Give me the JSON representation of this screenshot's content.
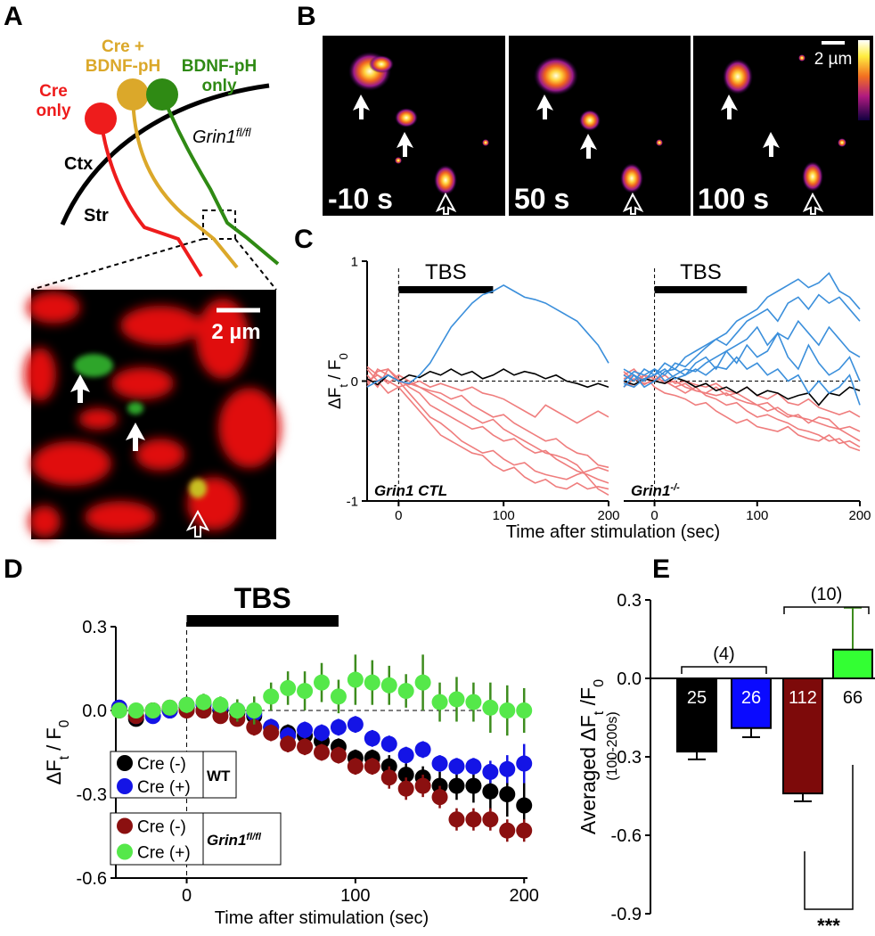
{
  "panels": [
    "A",
    "B",
    "C",
    "D",
    "E"
  ],
  "diagram": {
    "cells": [
      {
        "lines": [
          "Cre",
          "only"
        ],
        "color": "#ee1c1c"
      },
      {
        "lines": [
          "Cre +",
          "BDNF-pH"
        ],
        "color": "#dba82a"
      },
      {
        "lines": [
          "BDNF-pH",
          "only"
        ],
        "color": "#2f8a14"
      }
    ],
    "regions": [
      "Ctx",
      "Str"
    ],
    "genotype": {
      "text": "Grin1",
      "sup": "fl/fl"
    },
    "scale_bar": "2 µm"
  },
  "images": {
    "times": [
      "-10 s",
      "50 s",
      "100 s"
    ],
    "scale_bar": "2 µm"
  },
  "chart_data": [
    {
      "type": "line",
      "ylabel": [
        "ΔF",
        "t",
        " / F",
        "0"
      ],
      "xlabel": "Time after stimulation (sec)",
      "annotation": {
        "text": "TBS",
        "x": [
          0,
          90
        ]
      },
      "genotype": {
        "text": "Grin1",
        "suffix": " CTL"
      },
      "x": [
        -30,
        -20,
        -10,
        0,
        10,
        20,
        30,
        40,
        50,
        60,
        70,
        80,
        90,
        100,
        110,
        120,
        130,
        140,
        150,
        160,
        170,
        180,
        190,
        200
      ],
      "xlim": [
        -30,
        200
      ],
      "ylim": [
        -1,
        1
      ],
      "xticks": [
        0,
        100,
        200
      ],
      "yticks": [
        -1,
        0,
        1
      ],
      "series": [
        {
          "color": "#ef7d7d",
          "values": [
            0.1,
            0.0,
            -0.1,
            -0.05,
            -0.15,
            -0.25,
            -0.35,
            -0.45,
            -0.5,
            -0.55,
            -0.6,
            -0.62,
            -0.7,
            -0.75,
            -0.72,
            -0.8,
            -0.85,
            -0.82,
            -0.88,
            -0.9,
            -0.85,
            -0.9,
            -0.88,
            -0.9
          ]
        },
        {
          "color": "#ef7d7d",
          "values": [
            -0.05,
            0.1,
            0.05,
            0.0,
            -0.1,
            -0.2,
            -0.3,
            -0.35,
            -0.42,
            -0.5,
            -0.55,
            -0.6,
            -0.58,
            -0.65,
            -0.7,
            -0.68,
            -0.75,
            -0.78,
            -0.8,
            -0.82,
            -0.78,
            -0.75,
            -0.72,
            -0.75
          ]
        },
        {
          "color": "#ef7d7d",
          "values": [
            0.05,
            -0.05,
            0.1,
            0.02,
            -0.05,
            -0.1,
            -0.2,
            -0.25,
            -0.3,
            -0.35,
            -0.4,
            -0.38,
            -0.45,
            -0.5,
            -0.48,
            -0.55,
            -0.6,
            -0.58,
            -0.65,
            -0.7,
            -0.75,
            -0.78,
            -0.82,
            -0.85
          ]
        },
        {
          "color": "#ef7d7d",
          "values": [
            0.0,
            0.05,
            -0.02,
            0.05,
            0.0,
            -0.05,
            -0.1,
            -0.15,
            -0.2,
            -0.25,
            -0.3,
            -0.35,
            -0.32,
            -0.4,
            -0.45,
            -0.5,
            -0.55,
            -0.6,
            -0.62,
            -0.65,
            -0.7,
            -0.8,
            -0.9,
            -0.95
          ]
        },
        {
          "color": "#ef7d7d",
          "values": [
            0.12,
            0.05,
            0.0,
            -0.05,
            -0.02,
            -0.05,
            -0.08,
            -0.1,
            -0.15,
            -0.12,
            -0.2,
            -0.25,
            -0.3,
            -0.28,
            -0.35,
            -0.4,
            -0.45,
            -0.5,
            -0.48,
            -0.55,
            -0.6,
            -0.62,
            -0.7,
            -0.72
          ]
        },
        {
          "color": "#ef7d7d",
          "values": [
            -0.02,
            0.08,
            0.1,
            0.0,
            -0.03,
            0.0,
            -0.05,
            -0.02,
            -0.05,
            -0.08,
            -0.05,
            -0.1,
            -0.12,
            -0.15,
            -0.2,
            -0.25,
            -0.3,
            -0.2,
            -0.25,
            -0.3,
            -0.35,
            -0.3,
            -0.25,
            -0.3
          ]
        },
        {
          "color": "#000000",
          "values": [
            0.02,
            -0.03,
            0.05,
            0.0,
            0.05,
            0.03,
            0.08,
            0.05,
            0.1,
            0.05,
            0.08,
            0.02,
            0.05,
            0.1,
            0.05,
            0.08,
            0.06,
            0.02,
            0.05,
            0.0,
            -0.02,
            -0.05,
            -0.02,
            -0.05
          ]
        },
        {
          "color": "#3b8fdb",
          "values": [
            -0.05,
            0.0,
            0.05,
            0.0,
            -0.02,
            0.05,
            0.15,
            0.3,
            0.45,
            0.55,
            0.65,
            0.72,
            0.75,
            0.8,
            0.75,
            0.7,
            0.68,
            0.65,
            0.6,
            0.55,
            0.5,
            0.4,
            0.3,
            0.15
          ]
        }
      ]
    },
    {
      "type": "line",
      "annotation": {
        "text": "TBS",
        "x": [
          0,
          90
        ]
      },
      "genotype": {
        "text": "Grin1",
        "sup": "-/-"
      },
      "x": [
        -30,
        -20,
        -10,
        0,
        10,
        20,
        30,
        40,
        50,
        60,
        70,
        80,
        90,
        100,
        110,
        120,
        130,
        140,
        150,
        160,
        170,
        180,
        190,
        200
      ],
      "xlim": [
        -30,
        200
      ],
      "ylim": [
        -1,
        1
      ],
      "xticks": [
        0,
        100,
        200
      ],
      "series": [
        {
          "color": "#ef7d7d",
          "values": [
            0.05,
            0.1,
            0.0,
            0.05,
            -0.02,
            0.0,
            -0.05,
            -0.08,
            -0.1,
            -0.12,
            -0.1,
            -0.15,
            -0.18,
            -0.2,
            -0.25,
            -0.22,
            -0.28,
            -0.3,
            -0.32,
            -0.35,
            -0.38,
            -0.4,
            -0.45,
            -0.5
          ]
        },
        {
          "color": "#ef7d7d",
          "values": [
            0.0,
            -0.05,
            0.05,
            0.02,
            0.0,
            -0.05,
            -0.1,
            -0.05,
            -0.12,
            -0.15,
            -0.2,
            -0.18,
            -0.25,
            -0.3,
            -0.28,
            -0.32,
            -0.35,
            -0.4,
            -0.42,
            -0.45,
            -0.5,
            -0.48,
            -0.55,
            -0.58
          ]
        },
        {
          "color": "#ef7d7d",
          "values": [
            -0.05,
            0.02,
            -0.02,
            0.0,
            0.05,
            -0.02,
            0.0,
            -0.03,
            -0.05,
            -0.02,
            -0.08,
            -0.1,
            -0.05,
            -0.12,
            -0.15,
            -0.1,
            -0.18,
            -0.2,
            -0.15,
            -0.22,
            -0.25,
            -0.28,
            -0.25,
            -0.3
          ]
        },
        {
          "color": "#ef7d7d",
          "values": [
            0.08,
            0.0,
            0.05,
            -0.05,
            -0.1,
            -0.12,
            -0.15,
            -0.2,
            -0.18,
            -0.25,
            -0.3,
            -0.35,
            -0.32,
            -0.38,
            -0.4,
            -0.42,
            -0.38,
            -0.45,
            -0.48,
            -0.5,
            -0.45,
            -0.52,
            -0.5,
            -0.55
          ]
        },
        {
          "color": "#ef7d7d",
          "values": [
            0.02,
            0.05,
            -0.03,
            0.02,
            0.0,
            -0.05,
            -0.02,
            -0.08,
            -0.1,
            -0.05,
            -0.12,
            -0.1,
            -0.15,
            -0.2,
            -0.18,
            -0.25,
            -0.3,
            -0.28,
            -0.35,
            -0.3,
            -0.32,
            -0.4,
            -0.38,
            -0.42
          ]
        },
        {
          "color": "#000000",
          "values": [
            0.0,
            -0.03,
            0.02,
            0.0,
            -0.02,
            0.03,
            0.0,
            -0.05,
            -0.02,
            -0.08,
            -0.05,
            -0.1,
            -0.05,
            -0.12,
            -0.08,
            -0.1,
            -0.15,
            -0.12,
            -0.1,
            -0.2,
            -0.1,
            -0.12,
            -0.05,
            -0.08
          ]
        },
        {
          "color": "#3b8fdb",
          "values": [
            0.05,
            0.0,
            0.1,
            0.05,
            0.15,
            0.1,
            0.2,
            0.25,
            0.3,
            0.35,
            0.4,
            0.5,
            0.55,
            0.6,
            0.7,
            0.75,
            0.8,
            0.85,
            0.78,
            0.82,
            0.9,
            0.75,
            0.7,
            0.6
          ]
        },
        {
          "color": "#3b8fdb",
          "values": [
            -0.05,
            0.05,
            0.0,
            0.1,
            0.05,
            0.15,
            0.12,
            0.2,
            0.28,
            0.35,
            0.3,
            0.4,
            0.5,
            0.55,
            0.6,
            0.5,
            0.65,
            0.7,
            0.6,
            0.72,
            0.65,
            0.7,
            0.6,
            0.5
          ]
        },
        {
          "color": "#3b8fdb",
          "values": [
            0.1,
            0.05,
            -0.05,
            0.0,
            0.08,
            0.1,
            0.05,
            0.15,
            0.2,
            0.1,
            0.25,
            0.3,
            0.35,
            0.45,
            0.3,
            0.4,
            0.35,
            0.5,
            0.4,
            0.3,
            0.45,
            0.35,
            0.25,
            0.2
          ]
        },
        {
          "color": "#3b8fdb",
          "values": [
            0.0,
            0.08,
            0.05,
            0.1,
            0.0,
            0.05,
            0.1,
            0.08,
            0.15,
            0.2,
            0.25,
            0.15,
            0.3,
            0.2,
            0.25,
            0.4,
            0.2,
            0.1,
            0.3,
            0.15,
            0.05,
            0.1,
            0.2,
            0.0
          ]
        },
        {
          "color": "#3b8fdb",
          "values": [
            -0.02,
            -0.05,
            0.02,
            0.05,
            0.1,
            0.02,
            0.05,
            0.1,
            0.05,
            0.12,
            0.1,
            0.2,
            0.1,
            0.15,
            0.05,
            0.1,
            0.0,
            0.05,
            -0.1,
            0.0,
            -0.1,
            -0.05,
            0.05,
            -0.2
          ]
        }
      ]
    },
    {
      "type": "scatter",
      "ylabel": [
        "ΔF",
        "t",
        " / F",
        "0"
      ],
      "xlabel": "Time after stimulation (sec)",
      "annotation": {
        "text": "TBS",
        "x": [
          0,
          90
        ]
      },
      "x": [
        -40,
        -30,
        -20,
        -10,
        0,
        10,
        20,
        30,
        40,
        50,
        60,
        70,
        80,
        90,
        100,
        110,
        120,
        130,
        140,
        150,
        160,
        170,
        180,
        190,
        200
      ],
      "xlim": [
        -42,
        202
      ],
      "ylim": [
        -0.6,
        0.3
      ],
      "xticks": [
        0,
        100,
        200
      ],
      "yticks": [
        -0.6,
        -0.3,
        {
          "value": 0,
          "label": "0.0"
        },
        0.3
      ],
      "legend_groups": [
        {
          "text": "WT"
        },
        {
          "text": "Grin1",
          "sup": "fl/fl"
        }
      ],
      "series": [
        {
          "name": "Cre (-)",
          "color": "#000000",
          "error_color": "#000000",
          "values": [
            0.01,
            -0.03,
            0,
            0,
            0.01,
            0,
            0,
            -0.01,
            -0.02,
            -0.06,
            -0.08,
            -0.09,
            -0.11,
            -0.13,
            -0.17,
            -0.17,
            -0.2,
            -0.23,
            -0.24,
            -0.27,
            -0.27,
            -0.27,
            -0.29,
            -0.3,
            -0.34
          ],
          "errors": [
            0.02,
            0.02,
            0.02,
            0.02,
            0.02,
            0.02,
            0.02,
            0.02,
            0.03,
            0.03,
            0.03,
            0.03,
            0.03,
            0.03,
            0.03,
            0.03,
            0.04,
            0.04,
            0.04,
            0.05,
            0.05,
            0.06,
            0.07,
            0.08,
            0.08
          ]
        },
        {
          "name": "Cre (+)",
          "color": "#1414e6",
          "error_color": "#1414e6",
          "values": [
            0.01,
            -0.02,
            -0.02,
            0,
            0.02,
            0.02,
            0.01,
            0,
            -0.01,
            -0.06,
            -0.09,
            -0.07,
            -0.08,
            -0.06,
            -0.05,
            -0.1,
            -0.12,
            -0.16,
            -0.14,
            -0.19,
            -0.2,
            -0.2,
            -0.22,
            -0.21,
            -0.19
          ],
          "errors": [
            0.02,
            0.02,
            0.02,
            0.02,
            0.02,
            0.02,
            0.02,
            0.02,
            0.02,
            0.03,
            0.03,
            0.03,
            0.03,
            0.03,
            0.03,
            0.03,
            0.03,
            0.03,
            0.03,
            0.03,
            0.03,
            0.03,
            0.04,
            0.05,
            0.07
          ]
        },
        {
          "name": "Cre (-)",
          "color": "#8b1010",
          "error_color": "#8b1010",
          "values": [
            0,
            -0.02,
            0,
            0.01,
            0,
            0,
            -0.02,
            -0.03,
            -0.06,
            -0.08,
            -0.12,
            -0.13,
            -0.15,
            -0.16,
            -0.2,
            -0.2,
            -0.24,
            -0.28,
            -0.27,
            -0.31,
            -0.39,
            -0.39,
            -0.39,
            -0.43,
            -0.43
          ],
          "errors": [
            0.02,
            0.02,
            0.02,
            0.02,
            0.02,
            0.02,
            0.02,
            0.02,
            0.03,
            0.03,
            0.03,
            0.03,
            0.03,
            0.03,
            0.03,
            0.03,
            0.04,
            0.04,
            0.04,
            0.04,
            0.04,
            0.04,
            0.04,
            0.04,
            0.04
          ]
        },
        {
          "name": "Cre (+)",
          "color": "#55e84a",
          "error_color": "#3d8c1e",
          "values": [
            0,
            0,
            0,
            0.01,
            0.02,
            0.03,
            0.02,
            0,
            0,
            0.05,
            0.08,
            0.07,
            0.1,
            0.05,
            0.11,
            0.1,
            0.09,
            0.07,
            0.1,
            0.03,
            0.04,
            0.03,
            0.01,
            0,
            0
          ],
          "errors": [
            0.02,
            0.02,
            0.02,
            0.02,
            0.03,
            0.03,
            0.03,
            0.04,
            0.05,
            0.05,
            0.06,
            0.07,
            0.07,
            0.06,
            0.09,
            0.08,
            0.07,
            0.06,
            0.1,
            0.07,
            0.08,
            0.07,
            0.09,
            0.09,
            0.08
          ]
        }
      ]
    },
    {
      "type": "bar",
      "ylabel": [
        "Averaged ΔF",
        "t",
        " /F",
        "0"
      ],
      "ylabel_note": "(100-200s)",
      "categories": [
        null,
        null,
        null,
        null
      ],
      "values": [
        -0.28,
        -0.19,
        -0.44,
        0.11
      ],
      "errors": [
        0.03,
        0.035,
        0.03,
        0.16
      ],
      "colors": [
        "#000000",
        "#0a0aff",
        "#7d0a0a",
        "#33ff33"
      ],
      "error_colors": [
        "#000000",
        "#000000",
        "#000000",
        "#3d8c1e"
      ],
      "bar_labels": [
        25,
        26,
        112,
        66
      ],
      "brackets": [
        "(4)",
        "(10)"
      ],
      "significance": "***",
      "ylim": [
        -0.9,
        0.3
      ],
      "yticks": [
        -0.9,
        -0.6,
        -0.3,
        {
          "value": 0,
          "label": "0.0"
        },
        0.3
      ]
    }
  ]
}
